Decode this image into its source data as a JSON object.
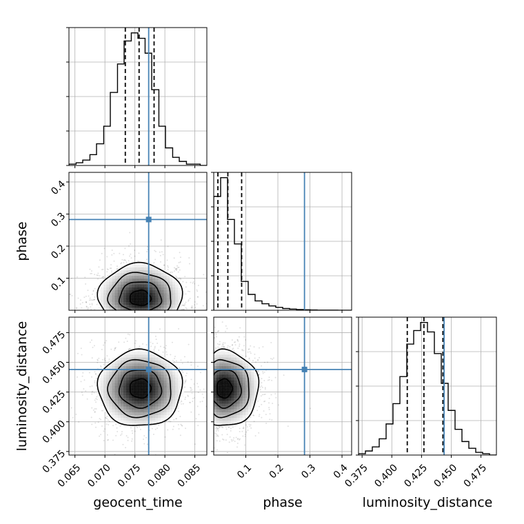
{
  "chart_data": {
    "type": "corner",
    "colors": {
      "truth": "#4682b4",
      "hist": "#000000",
      "grid": "#b0b0b0",
      "quantile": "#000000"
    },
    "grid": true,
    "parameters": [
      {
        "name": "geocent_time",
        "label": "geocent_time",
        "range": [
          0.064,
          0.087
        ],
        "ticks": [
          0.065,
          0.07,
          0.075,
          0.08,
          0.085
        ],
        "tick_labels": [
          "0.065",
          "0.070",
          "0.075",
          "0.080",
          "0.085"
        ],
        "truth": 0.0773,
        "quantiles": [
          0.0734,
          0.0757,
          0.0782
        ]
      },
      {
        "name": "phase",
        "label": "phase",
        "range": [
          0.0,
          0.43
        ],
        "ticks": [
          0.1,
          0.2,
          0.3,
          0.4
        ],
        "tick_labels": [
          "0.1",
          "0.2",
          "0.3",
          "0.4"
        ],
        "truth": 0.283,
        "quantiles": [
          0.013,
          0.044,
          0.087
        ]
      },
      {
        "name": "luminosity_distance",
        "label": "luminosity_distance",
        "range": [
          0.372,
          0.488
        ],
        "ticks": [
          0.375,
          0.4,
          0.425,
          0.45,
          0.475
        ],
        "tick_labels": [
          "0.375",
          "0.400",
          "0.425",
          "0.450",
          "0.475"
        ],
        "truth": 0.444,
        "quantiles": [
          0.413,
          0.427,
          0.443
        ]
      }
    ],
    "histograms": [
      {
        "parameter": "geocent_time",
        "bin_edges": [
          0.064,
          0.0652,
          0.0663,
          0.0675,
          0.0686,
          0.0698,
          0.0709,
          0.0721,
          0.0732,
          0.0744,
          0.0755,
          0.0767,
          0.0778,
          0.079,
          0.0801,
          0.0813,
          0.0824,
          0.0836,
          0.0847,
          0.0859,
          0.087
        ],
        "counts": [
          0.01,
          0.02,
          0.04,
          0.08,
          0.16,
          0.29,
          0.54,
          0.75,
          0.92,
          0.98,
          0.94,
          0.83,
          0.56,
          0.29,
          0.13,
          0.06,
          0.03,
          0.01,
          0.01,
          0.0
        ]
      },
      {
        "parameter": "phase",
        "bin_edges": [
          0.0,
          0.0215,
          0.043,
          0.0645,
          0.086,
          0.1075,
          0.129,
          0.1505,
          0.172,
          0.1935,
          0.215,
          0.2365,
          0.258,
          0.2795,
          0.301,
          0.3225,
          0.344,
          0.3655,
          0.387,
          0.4085,
          0.43
        ],
        "counts": [
          0.79,
          0.92,
          0.63,
          0.46,
          0.2,
          0.11,
          0.065,
          0.045,
          0.03,
          0.02,
          0.012,
          0.008,
          0.005,
          0.003,
          0.002,
          0.001,
          0.001,
          0.001,
          0.0,
          0.0
        ]
      },
      {
        "parameter": "luminosity_distance",
        "bin_edges": [
          0.372,
          0.3778,
          0.3836,
          0.3894,
          0.3952,
          0.401,
          0.4068,
          0.4126,
          0.4184,
          0.4242,
          0.43,
          0.4358,
          0.4416,
          0.4474,
          0.4532,
          0.459,
          0.4648,
          0.4706,
          0.4764,
          0.4822,
          0.488
        ],
        "counts": [
          0.01,
          0.03,
          0.06,
          0.12,
          0.23,
          0.38,
          0.58,
          0.82,
          0.92,
          0.98,
          0.91,
          0.75,
          0.53,
          0.33,
          0.19,
          0.1,
          0.05,
          0.02,
          0.01,
          0.0
        ]
      }
    ],
    "contour_plots": [
      {
        "x": "geocent_time",
        "y": "phase",
        "peak": [
          0.0759,
          0.035
        ],
        "spread": [
          0.0035,
          0.04
        ],
        "spread_up": 0.055
      },
      {
        "x": "geocent_time",
        "y": "luminosity_distance",
        "peak": [
          0.0759,
          0.428
        ],
        "spread": [
          0.0035,
          0.016
        ]
      },
      {
        "x": "phase",
        "y": "luminosity_distance",
        "peak": [
          0.03,
          0.428
        ],
        "spread": [
          0.04,
          0.016
        ],
        "spread_right": 0.055
      }
    ],
    "truth_markers": [
      {
        "x": "geocent_time",
        "y": "phase",
        "value": [
          0.0773,
          0.283
        ]
      },
      {
        "x": "geocent_time",
        "y": "luminosity_distance",
        "value": [
          0.0773,
          0.444
        ]
      },
      {
        "x": "phase",
        "y": "luminosity_distance",
        "value": [
          0.283,
          0.444
        ]
      }
    ]
  }
}
